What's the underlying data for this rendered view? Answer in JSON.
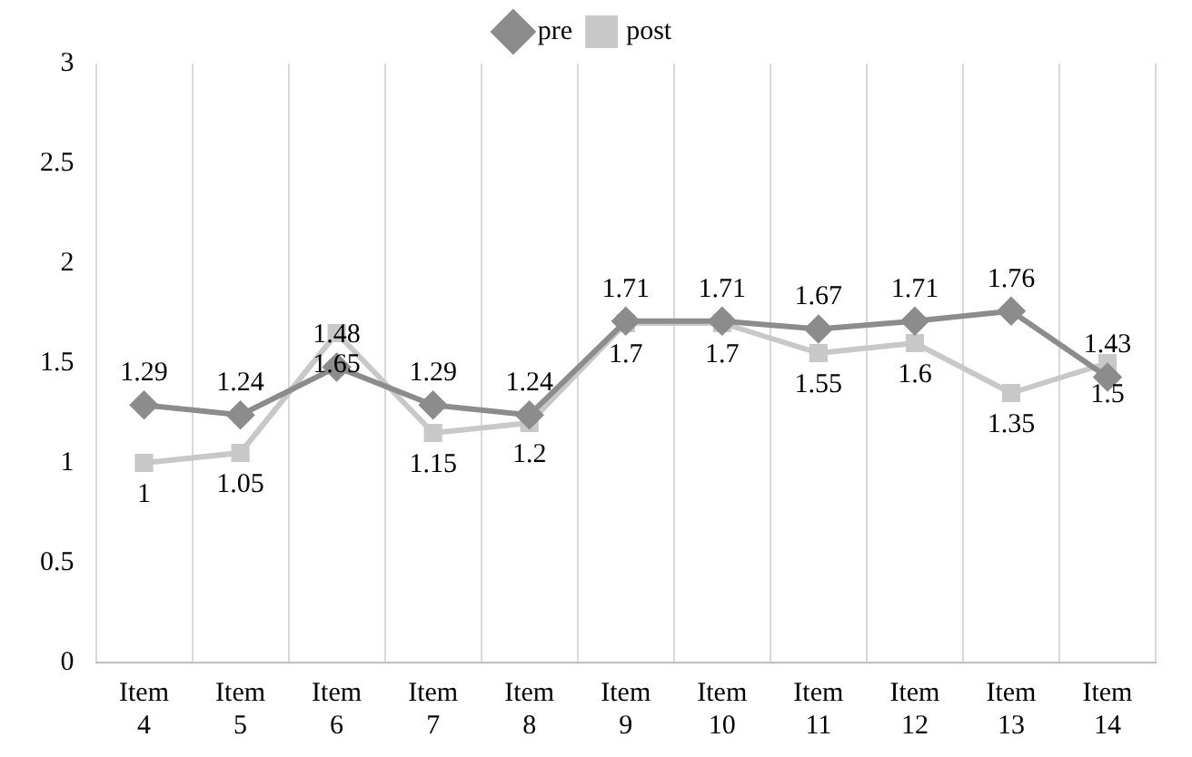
{
  "chart_data": {
    "type": "line",
    "categories": [
      "Item 4",
      "Item 5",
      "Item 6",
      "Item 7",
      "Item 8",
      "Item 9",
      "Item 10",
      "Item 11",
      "Item 12",
      "Item 13",
      "Item 14"
    ],
    "series": [
      {
        "name": "pre",
        "color": "#8c8c8c",
        "marker": "diamond",
        "values": [
          1.29,
          1.24,
          1.48,
          1.29,
          1.24,
          1.71,
          1.71,
          1.67,
          1.71,
          1.76,
          1.43
        ]
      },
      {
        "name": "post",
        "color": "#c8c8c8",
        "marker": "square",
        "values": [
          1,
          1.05,
          1.65,
          1.15,
          1.2,
          1.7,
          1.7,
          1.55,
          1.6,
          1.35,
          1.5
        ]
      }
    ],
    "ylim": [
      0,
      3
    ],
    "yticks": [
      0,
      0.5,
      1,
      1.5,
      2,
      2.5,
      3
    ],
    "grid": "x",
    "legend": "top",
    "data_labels": true,
    "line_style": "solid"
  }
}
